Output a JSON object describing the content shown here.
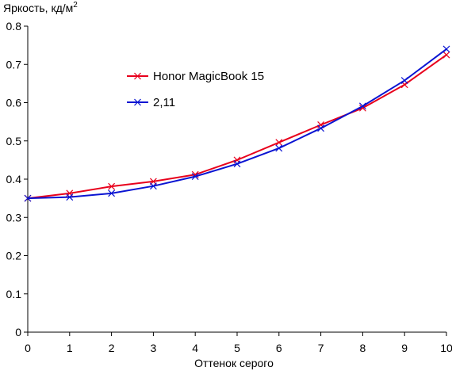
{
  "chart_data": {
    "type": "line",
    "ylabel_main": "Яркость, кд/м",
    "ylabel_sup": "2",
    "xlabel": "Оттенок серого",
    "xlim": [
      0,
      10
    ],
    "ylim": [
      0,
      0.8
    ],
    "x_ticks": [
      0,
      1,
      2,
      3,
      4,
      5,
      6,
      7,
      8,
      9,
      10
    ],
    "x_tick_labels": [
      "0",
      "1",
      "2",
      "3",
      "4",
      "5",
      "6",
      "7",
      "8",
      "9",
      "10"
    ],
    "y_ticks": [
      0,
      0.1,
      0.2,
      0.3,
      0.4,
      0.5,
      0.6,
      0.7,
      0.8
    ],
    "y_tick_labels": [
      "0",
      "0.1",
      "0.2",
      "0.3",
      "0.4",
      "0.5",
      "0.6",
      "0.7",
      "0.8"
    ],
    "grid": false,
    "legend_position": "upper-left",
    "x": [
      0,
      1,
      2,
      3,
      4,
      5,
      6,
      7,
      8,
      9,
      10
    ],
    "series": [
      {
        "name": "Honor MagicBook 15",
        "color": "#e8001c",
        "marker": "x",
        "values": [
          0.35,
          0.363,
          0.381,
          0.394,
          0.412,
          0.45,
          0.496,
          0.542,
          0.586,
          0.647,
          0.725
        ]
      },
      {
        "name": "2,11",
        "color": "#0a14d2",
        "marker": "x",
        "values": [
          0.35,
          0.353,
          0.363,
          0.382,
          0.407,
          0.44,
          0.481,
          0.533,
          0.591,
          0.658,
          0.74
        ]
      }
    ]
  }
}
